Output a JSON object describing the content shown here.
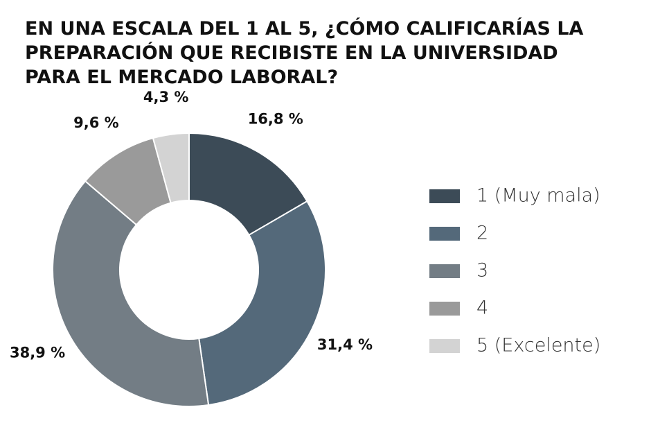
{
  "chart_data": {
    "type": "donut",
    "title": "EN UNA ESCALA DEL 1 AL 5, ¿CÓMO CALIFICARÍAS LA\nPREPARACIÓN QUE RECIBISTE EN LA UNIVERSIDAD\nPARA EL MERCADO LABORAL?",
    "categories": [
      "1 (Muy mala)",
      "2",
      "3",
      "4",
      "5 (Excelente)"
    ],
    "values": [
      16.8,
      31.4,
      38.9,
      9.6,
      4.3
    ],
    "value_labels": [
      "16,8 %",
      "31,4 %",
      "38,9 %",
      "9,6 %",
      "4,3 %"
    ],
    "colors": [
      "#3c4b57",
      "#54697a",
      "#737d85",
      "#9a9a9a",
      "#d3d3d3"
    ],
    "legend": "right"
  }
}
